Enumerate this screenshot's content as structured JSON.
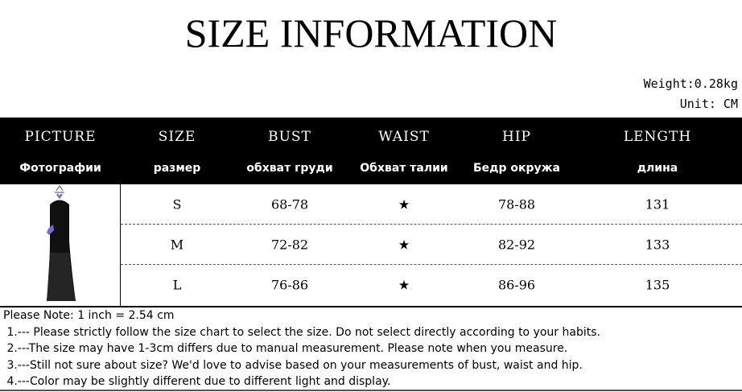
{
  "title": "SIZE INFORMATION",
  "weight": "Weight:0.28kg",
  "unit": "Unit: CM",
  "headers": [
    {
      "en": "PICTURE",
      "ru": "Фотографии"
    },
    {
      "en": "SIZE",
      "ru": "размер"
    },
    {
      "en": "BUST",
      "ru": "обхват груди"
    },
    {
      "en": "WAIST",
      "ru": "Обхват талии"
    },
    {
      "en": "HIP",
      "ru": "Бедр окружа"
    },
    {
      "en": "LENGTH",
      "ru": "длина"
    }
  ],
  "rows": [
    {
      "size": "S",
      "bust": "68-78",
      "waist": "★",
      "hip": "78-88",
      "length": "131"
    },
    {
      "size": "M",
      "bust": "72-82",
      "waist": "★",
      "hip": "82-92",
      "length": "133"
    },
    {
      "size": "L",
      "bust": "76-86",
      "waist": "★",
      "hip": "86-96",
      "length": "135"
    }
  ],
  "notes": [
    "Please Note: 1 inch = 2.54 cm",
    " 1.--- Please strictly follow the size chart to select the size. Do not select directly according to your habits.",
    " 2.---The size may have 1-3cm differs due to manual measurement. Please note when you measure.",
    " 3.---Still not sure about size? We'd love to advise based on your measurements of bust, waist and hip.",
    " 4.---Color may be slightly different due to different light and display."
  ],
  "colors": {
    "header_bg": "#000000",
    "accent": "#7a6ccf"
  }
}
